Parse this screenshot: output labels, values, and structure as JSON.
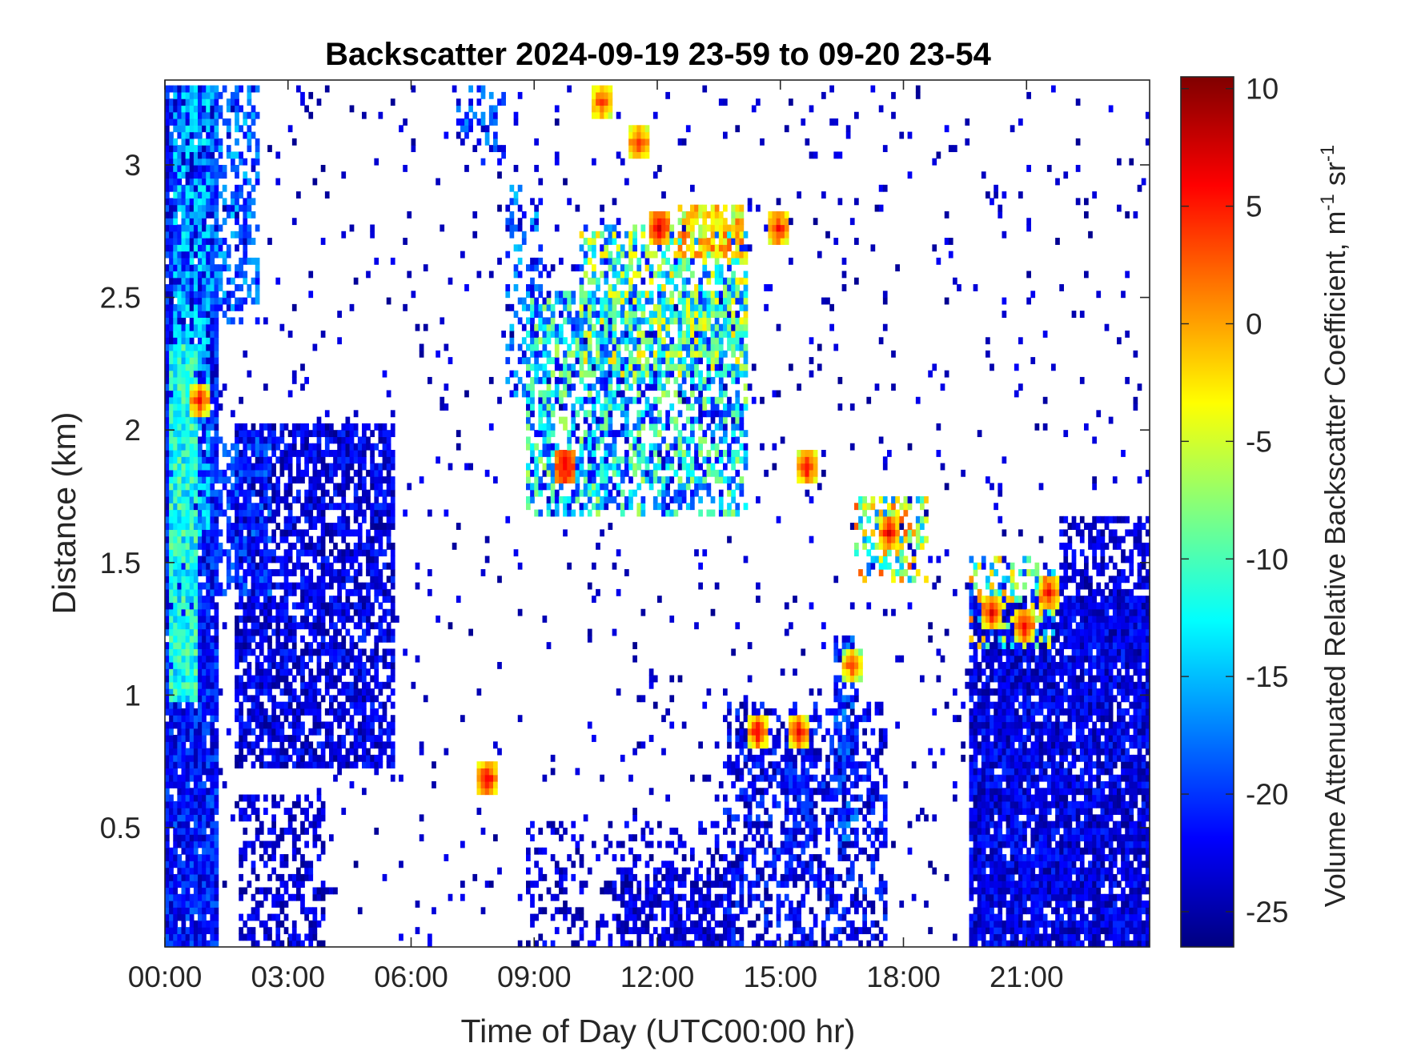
{
  "chart_data": {
    "type": "heatmap",
    "title": "Backscatter 2024-09-19 23-59 to 09-20 23-54",
    "xlabel": "Time of Day (UTC00:00 hr)",
    "ylabel": "Distance (km)",
    "x_unit": "hours UTC",
    "xlim": [
      0,
      24
    ],
    "ylim": [
      0.05,
      3.32
    ],
    "x_ticks": [
      {
        "value": 0,
        "label": "00:00"
      },
      {
        "value": 3,
        "label": "03:00"
      },
      {
        "value": 6,
        "label": "06:00"
      },
      {
        "value": 9,
        "label": "09:00"
      },
      {
        "value": 12,
        "label": "12:00"
      },
      {
        "value": 15,
        "label": "15:00"
      },
      {
        "value": 18,
        "label": "18:00"
      },
      {
        "value": 21,
        "label": "21:00"
      }
    ],
    "y_ticks": [
      {
        "value": 0.5,
        "label": "0.5"
      },
      {
        "value": 1,
        "label": "1"
      },
      {
        "value": 1.5,
        "label": "1.5"
      },
      {
        "value": 2,
        "label": "2"
      },
      {
        "value": 2.5,
        "label": "2.5"
      },
      {
        "value": 3,
        "label": "3"
      }
    ],
    "colorbar": {
      "label_main": "Volume Attenuated Relative Backscatter Coefficient, m",
      "label_sup1": "-1",
      "label_mid": " sr",
      "label_sup2": "-1",
      "colormap": "jet",
      "range": [
        -26.5,
        10.5
      ],
      "ticks": [
        {
          "value": 10,
          "label": "10"
        },
        {
          "value": 5,
          "label": "5"
        },
        {
          "value": 0,
          "label": "0"
        },
        {
          "value": -5,
          "label": "-5"
        },
        {
          "value": -10,
          "label": "-10"
        },
        {
          "value": -15,
          "label": "-15"
        },
        {
          "value": -20,
          "label": "-20"
        },
        {
          "value": -25,
          "label": "-25"
        }
      ]
    },
    "regions": [
      {
        "t0": 0.0,
        "t1": 1.2,
        "z0": 0.05,
        "z1": 3.32,
        "density": 0.92,
        "vmin": -25,
        "vmax": -18
      },
      {
        "t0": 0.1,
        "t1": 0.7,
        "z0": 1.0,
        "z1": 2.3,
        "density": 0.95,
        "vmin": -16,
        "vmax": -8
      },
      {
        "t0": 0.3,
        "t1": 1.0,
        "z0": 1.6,
        "z1": 3.3,
        "density": 0.6,
        "vmin": -17,
        "vmax": -12
      },
      {
        "t0": 1.1,
        "t1": 2.2,
        "z0": 2.4,
        "z1": 3.32,
        "density": 0.45,
        "vmin": -22,
        "vmax": -14
      },
      {
        "t0": 1.2,
        "t1": 2.5,
        "z0": 1.4,
        "z1": 1.95,
        "density": 0.5,
        "vmin": -23,
        "vmax": -17
      },
      {
        "t0": 1.7,
        "t1": 5.5,
        "z0": 0.75,
        "z1": 2.0,
        "density": 0.72,
        "vmin": -26,
        "vmax": -20
      },
      {
        "t0": 1.8,
        "t1": 3.8,
        "z0": 0.05,
        "z1": 0.6,
        "density": 0.45,
        "vmin": -26,
        "vmax": -21
      },
      {
        "t0": 7.0,
        "t1": 8.2,
        "z0": 3.0,
        "z1": 3.32,
        "density": 0.3,
        "vmin": -24,
        "vmax": -16
      },
      {
        "t0": 8.3,
        "t1": 9.1,
        "z0": 2.1,
        "z1": 2.9,
        "density": 0.35,
        "vmin": -24,
        "vmax": -14
      },
      {
        "t0": 8.8,
        "t1": 14.1,
        "z0": 1.7,
        "z1": 2.5,
        "density": 0.62,
        "vmin": -24,
        "vmax": -6
      },
      {
        "t0": 10.2,
        "t1": 14.1,
        "z0": 2.2,
        "z1": 2.75,
        "density": 0.55,
        "vmin": -22,
        "vmax": -2
      },
      {
        "t0": 12.5,
        "t1": 14.0,
        "z0": 2.65,
        "z1": 2.82,
        "density": 0.75,
        "vmin": -8,
        "vmax": 3
      },
      {
        "t0": 8.8,
        "t1": 14.0,
        "z0": 0.05,
        "z1": 0.5,
        "density": 0.22,
        "vmin": -26,
        "vmax": -21
      },
      {
        "t0": 11.2,
        "t1": 13.8,
        "z0": 0.05,
        "z1": 0.32,
        "density": 0.55,
        "vmin": -26,
        "vmax": -21
      },
      {
        "t0": 13.7,
        "t1": 17.5,
        "z0": 0.05,
        "z1": 0.95,
        "density": 0.42,
        "vmin": -26,
        "vmax": -19
      },
      {
        "t0": 15.1,
        "t1": 15.7,
        "z0": 0.3,
        "z1": 0.85,
        "density": 0.75,
        "vmin": -25,
        "vmax": -19
      },
      {
        "t0": 16.3,
        "t1": 16.8,
        "z0": 0.45,
        "z1": 1.2,
        "density": 0.6,
        "vmin": -25,
        "vmax": -16
      },
      {
        "t0": 16.9,
        "t1": 18.5,
        "z0": 1.45,
        "z1": 1.72,
        "density": 0.5,
        "vmin": -18,
        "vmax": 3
      },
      {
        "t0": 19.6,
        "t1": 24.0,
        "z0": 0.05,
        "z1": 1.35,
        "density": 0.88,
        "vmin": -26,
        "vmax": -20
      },
      {
        "t0": 21.8,
        "t1": 24.0,
        "z0": 1.2,
        "z1": 1.65,
        "density": 0.55,
        "vmin": -26,
        "vmax": -21
      },
      {
        "t0": 19.6,
        "t1": 21.6,
        "z0": 1.2,
        "z1": 1.5,
        "density": 0.45,
        "vmin": -22,
        "vmax": 2
      }
    ],
    "hotspots": [
      {
        "t": 0.8,
        "z": 2.1,
        "vmin": -4,
        "vmax": 7
      },
      {
        "t": 7.85,
        "z": 0.68,
        "vmin": -2,
        "vmax": 8
      },
      {
        "t": 10.6,
        "z": 3.22,
        "vmin": -3,
        "vmax": 5
      },
      {
        "t": 11.5,
        "z": 3.07,
        "vmin": -3,
        "vmax": 6
      },
      {
        "t": 12.0,
        "z": 2.75,
        "vmin": 0,
        "vmax": 8
      },
      {
        "t": 9.7,
        "z": 1.85,
        "vmin": 2,
        "vmax": 8
      },
      {
        "t": 14.9,
        "z": 2.74,
        "vmin": -2,
        "vmax": 7
      },
      {
        "t": 15.6,
        "z": 1.86,
        "vmin": -3,
        "vmax": 8
      },
      {
        "t": 14.4,
        "z": 0.84,
        "vmin": -3,
        "vmax": 8
      },
      {
        "t": 15.4,
        "z": 0.84,
        "vmin": -3,
        "vmax": 8
      },
      {
        "t": 16.7,
        "z": 1.1,
        "vmin": -6,
        "vmax": 6
      },
      {
        "t": 17.6,
        "z": 1.6,
        "vmin": -2,
        "vmax": 8
      },
      {
        "t": 20.1,
        "z": 1.3,
        "vmin": -3,
        "vmax": 8
      },
      {
        "t": 20.9,
        "z": 1.25,
        "vmin": -3,
        "vmax": 8
      },
      {
        "t": 21.5,
        "z": 1.38,
        "vmin": -3,
        "vmax": 7
      }
    ],
    "grid": false
  }
}
